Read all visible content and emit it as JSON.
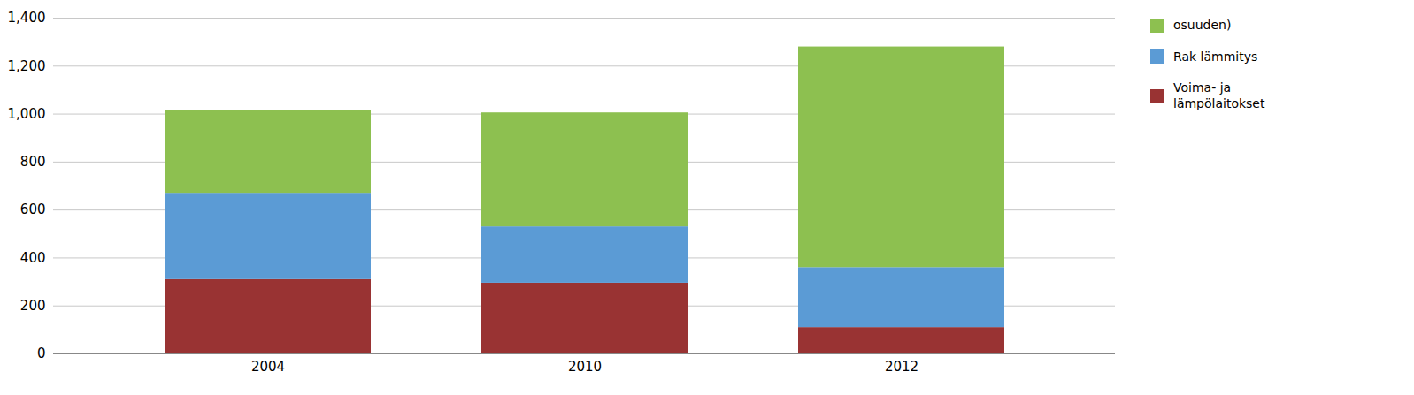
{
  "chart_data": {
    "type": "bar",
    "stacked": true,
    "categories": [
      "2004",
      "2010",
      "2012"
    ],
    "series": [
      {
        "name": "Voima- ja\nlämpölaitokset",
        "color": "#993333",
        "values": [
          310,
          295,
          110
        ]
      },
      {
        "name": "Rak lämmitys",
        "color": "#5B9BD5",
        "values": [
          360,
          235,
          250
        ]
      },
      {
        "name": "osuuden)",
        "color": "#8DC050",
        "values": [
          345,
          475,
          920
        ]
      }
    ],
    "ylim": [
      0,
      1400
    ],
    "yticks": [
      0,
      200,
      400,
      600,
      800,
      1000,
      1200,
      1400
    ],
    "grid": true,
    "legend": "right"
  }
}
